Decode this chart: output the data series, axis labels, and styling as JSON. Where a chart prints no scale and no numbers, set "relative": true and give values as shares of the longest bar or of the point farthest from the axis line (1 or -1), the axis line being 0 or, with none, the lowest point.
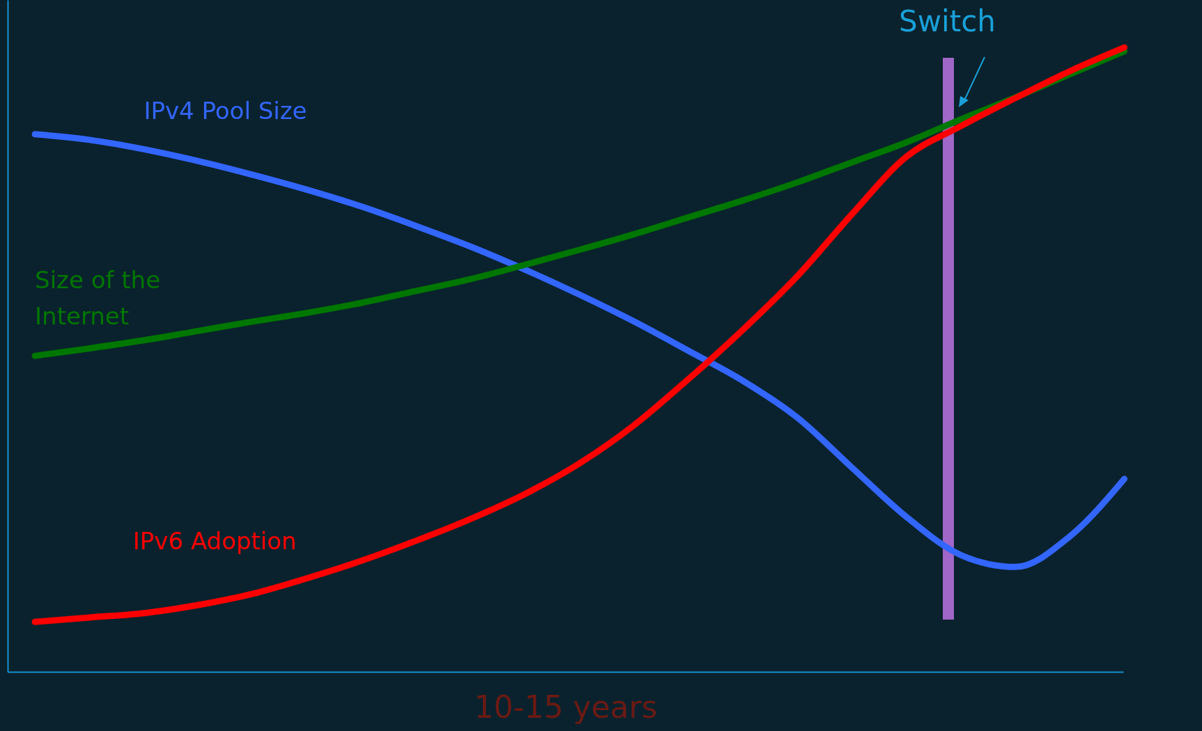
{
  "chart_data": {
    "type": "line",
    "relative": true,
    "xlabel": "10-15 years",
    "categories": [
      null,
      null,
      null,
      null,
      null,
      null,
      null,
      null,
      null,
      null,
      null,
      null,
      null,
      null,
      null,
      null,
      null,
      null,
      null,
      null,
      null
    ],
    "series": [
      {
        "name": "IPv4 Pool Size",
        "color": "#3366ff",
        "values": [
          0.861,
          0.852,
          0.837,
          0.818,
          0.796,
          0.772,
          0.745,
          0.714,
          0.681,
          0.644,
          0.604,
          0.561,
          0.514,
          0.466,
          0.407,
          0.327,
          0.248,
          0.187,
          0.168,
          0.217,
          0.309
        ]
      },
      {
        "name": "Size of the Internet",
        "color": "#007700",
        "values": [
          0.506,
          0.518,
          0.531,
          0.546,
          0.561,
          0.575,
          0.591,
          0.61,
          0.629,
          0.652,
          0.676,
          0.701,
          0.728,
          0.755,
          0.784,
          0.816,
          0.848,
          0.885,
          0.92,
          0.957,
          0.994
        ]
      },
      {
        "name": "IPv6  Adoption",
        "color": "#ff0000",
        "values": [
          0.08,
          0.087,
          0.094,
          0.107,
          0.125,
          0.15,
          0.178,
          0.21,
          0.245,
          0.285,
          0.334,
          0.395,
          0.469,
          0.548,
          0.634,
          0.733,
          0.825,
          0.874,
          0.919,
          0.962,
          1.0
        ]
      }
    ],
    "annotations": [
      "Switch"
    ],
    "grid": false,
    "line_style": "solid",
    "marker": "none"
  }
}
